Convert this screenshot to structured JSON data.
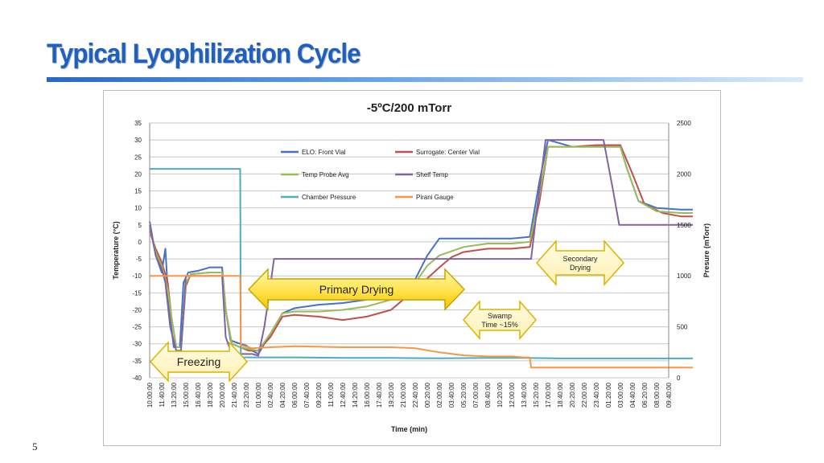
{
  "slide": {
    "title": "Typical Lyophilization Cycle",
    "page_number": "5"
  },
  "chart_data": {
    "type": "line",
    "title": "-5ºC/200 mTorr",
    "xlabel": "Time (min)",
    "ylabel": "Temperature (°C)",
    "y2label": "Presure (mTorr)",
    "ylim": [
      -40,
      35
    ],
    "y2lim": [
      0,
      2500
    ],
    "yticks": [
      35,
      30,
      25,
      20,
      15,
      10,
      5,
      0,
      -5,
      -10,
      -15,
      -20,
      -25,
      -30,
      -35,
      -40
    ],
    "y2ticks": [
      2500,
      2000,
      1500,
      1000,
      500,
      0
    ],
    "grid": true,
    "legend_position": "top-center",
    "x_ticks": [
      "10:00:00",
      "11:40:00",
      "13:20:00",
      "15:00:00",
      "16:40:00",
      "18:20:00",
      "20:00:00",
      "21:40:00",
      "23:20:00",
      "01:00:00",
      "02:40:00",
      "04:20:00",
      "06:00:00",
      "07:40:00",
      "09:20:00",
      "11:00:00",
      "12:40:00",
      "14:20:00",
      "16:00:00",
      "17:40:00",
      "19:20:00",
      "21:00:00",
      "22:40:00",
      "00:20:00",
      "02:00:00",
      "03:40:00",
      "05:20:00",
      "07:00:00",
      "08:40:00",
      "10:20:00",
      "12:00:00",
      "13:40:00",
      "15:20:00",
      "17:00:00",
      "18:40:00",
      "20:20:00",
      "22:00:00",
      "23:40:00",
      "01:20:00",
      "03:00:00",
      "04:40:00",
      "06:20:00",
      "08:00:00",
      "09:40:00"
    ],
    "series": [
      {
        "name": "ELO: Front Vial",
        "color": "#4472c4",
        "axis": "left",
        "points": [
          [
            0,
            6
          ],
          [
            0.5,
            -4
          ],
          [
            1,
            -9
          ],
          [
            1.3,
            -2
          ],
          [
            1.6,
            -20
          ],
          [
            2,
            -31
          ],
          [
            2.5,
            -31
          ],
          [
            2.8,
            -12
          ],
          [
            3.2,
            -9
          ],
          [
            4,
            -8.5
          ],
          [
            5,
            -7.5
          ],
          [
            6,
            -7.5
          ],
          [
            6.3,
            -20
          ],
          [
            6.7,
            -29
          ],
          [
            7.5,
            -30
          ],
          [
            8,
            -30.5
          ],
          [
            8.5,
            -32
          ],
          [
            9,
            -33
          ],
          [
            10,
            -27
          ],
          [
            11,
            -21
          ],
          [
            12,
            -19.5
          ],
          [
            14,
            -18.5
          ],
          [
            16,
            -18
          ],
          [
            18,
            -17
          ],
          [
            20,
            -15
          ],
          [
            22,
            -11
          ],
          [
            23,
            -4
          ],
          [
            24,
            1
          ],
          [
            26,
            1
          ],
          [
            28,
            1
          ],
          [
            30,
            1
          ],
          [
            31.5,
            1.5
          ],
          [
            32.3,
            18
          ],
          [
            33,
            30
          ],
          [
            35,
            28
          ],
          [
            37,
            28
          ],
          [
            39,
            28
          ],
          [
            39.5,
            22
          ],
          [
            40.5,
            12
          ],
          [
            42,
            10
          ],
          [
            44,
            9.5
          ],
          [
            45,
            9.5
          ]
        ]
      },
      {
        "name": "Surrogate: Center Vial",
        "color": "#c0504d",
        "axis": "left",
        "points": [
          [
            0,
            3
          ],
          [
            0.5,
            -2
          ],
          [
            1,
            -6
          ],
          [
            1.5,
            -12
          ],
          [
            1.8,
            -22
          ],
          [
            2.2,
            -31
          ],
          [
            2.6,
            -31
          ],
          [
            3,
            -13
          ],
          [
            3.4,
            -9.5
          ],
          [
            5,
            -9
          ],
          [
            6,
            -9
          ],
          [
            6.3,
            -20
          ],
          [
            6.8,
            -30
          ],
          [
            7.5,
            -31
          ],
          [
            8.2,
            -32
          ],
          [
            9,
            -32
          ],
          [
            10,
            -28
          ],
          [
            11,
            -22
          ],
          [
            12,
            -21.5
          ],
          [
            14,
            -22
          ],
          [
            16,
            -23
          ],
          [
            18,
            -22
          ],
          [
            20,
            -20
          ],
          [
            22,
            -14
          ],
          [
            24,
            -7.5
          ],
          [
            25,
            -4.5
          ],
          [
            26,
            -3
          ],
          [
            28,
            -2
          ],
          [
            30,
            -2
          ],
          [
            31.5,
            -1.5
          ],
          [
            32.3,
            12
          ],
          [
            33,
            28
          ],
          [
            35,
            28
          ],
          [
            37,
            28.5
          ],
          [
            39,
            28.5
          ],
          [
            40,
            20
          ],
          [
            41,
            11
          ],
          [
            42.5,
            8.5
          ],
          [
            44,
            7.5
          ],
          [
            45,
            7.5
          ]
        ]
      },
      {
        "name": "Temp Probe Avg",
        "color": "#9bbb59",
        "axis": "left",
        "points": [
          [
            0,
            4
          ],
          [
            0.5,
            -3
          ],
          [
            1,
            -7
          ],
          [
            1.5,
            -14
          ],
          [
            1.8,
            -22
          ],
          [
            2.2,
            -31
          ],
          [
            2.6,
            -31
          ],
          [
            3,
            -12
          ],
          [
            3.4,
            -9.5
          ],
          [
            5,
            -9
          ],
          [
            6,
            -9
          ],
          [
            6.3,
            -20
          ],
          [
            6.8,
            -30
          ],
          [
            7.5,
            -31
          ],
          [
            8.2,
            -31.5
          ],
          [
            9,
            -32
          ],
          [
            10,
            -27
          ],
          [
            11,
            -21
          ],
          [
            12,
            -20.5
          ],
          [
            14,
            -20.5
          ],
          [
            16,
            -20
          ],
          [
            18,
            -19
          ],
          [
            20,
            -17
          ],
          [
            22,
            -12
          ],
          [
            23,
            -7
          ],
          [
            24,
            -4
          ],
          [
            26,
            -1.5
          ],
          [
            28,
            -0.5
          ],
          [
            30,
            -0.5
          ],
          [
            31.5,
            0
          ],
          [
            32.3,
            14
          ],
          [
            33,
            28
          ],
          [
            35,
            28
          ],
          [
            37,
            28
          ],
          [
            39,
            28
          ],
          [
            39.5,
            22
          ],
          [
            40.5,
            12
          ],
          [
            42,
            9
          ],
          [
            44,
            8.5
          ],
          [
            45,
            8.5
          ]
        ]
      },
      {
        "name": "Shelf Temp",
        "color": "#8064a2",
        "axis": "left",
        "points": [
          [
            0,
            5
          ],
          [
            0.5,
            -4
          ],
          [
            1,
            -8
          ],
          [
            1.3,
            -12
          ],
          [
            1.7,
            -25
          ],
          [
            2.2,
            -32
          ],
          [
            2.6,
            -32
          ],
          [
            3,
            -10
          ],
          [
            3.5,
            -10
          ],
          [
            5,
            -10
          ],
          [
            6,
            -10
          ],
          [
            6.3,
            -28
          ],
          [
            6.8,
            -33
          ],
          [
            7.5,
            -33
          ],
          [
            8.5,
            -33
          ],
          [
            9,
            -33.5
          ],
          [
            9.5,
            -25
          ],
          [
            10,
            -13
          ],
          [
            10.3,
            -5
          ],
          [
            12,
            -5
          ],
          [
            14,
            -5
          ],
          [
            16,
            -5
          ],
          [
            18,
            -5
          ],
          [
            20,
            -5
          ],
          [
            22,
            -5
          ],
          [
            24,
            -5
          ],
          [
            26,
            -5
          ],
          [
            28,
            -5
          ],
          [
            30,
            -5
          ],
          [
            31.6,
            -5
          ],
          [
            32.1,
            10
          ],
          [
            32.8,
            30
          ],
          [
            34,
            30
          ],
          [
            36,
            30
          ],
          [
            37.6,
            30
          ],
          [
            38.4,
            15
          ],
          [
            38.9,
            5
          ],
          [
            40,
            5
          ],
          [
            42,
            5
          ],
          [
            44,
            5
          ],
          [
            45,
            5
          ]
        ]
      },
      {
        "name": "Chamber Pressure",
        "color": "#4bacc6",
        "axis": "right",
        "points": [
          [
            0,
            2050
          ],
          [
            7.5,
            2050
          ],
          [
            7.5,
            2050
          ],
          [
            7.55,
            200
          ],
          [
            10,
            200
          ],
          [
            12,
            200
          ],
          [
            16,
            195
          ],
          [
            20,
            195
          ],
          [
            24,
            192
          ],
          [
            28,
            195
          ],
          [
            31,
            195
          ],
          [
            34,
            190
          ],
          [
            40,
            190
          ],
          [
            45,
            190
          ]
        ]
      },
      {
        "name": "Pirani Gauge",
        "color": "#f79646",
        "axis": "right",
        "points": [
          [
            0,
            1000
          ],
          [
            7.5,
            1000
          ],
          [
            7.55,
            320
          ],
          [
            8.5,
            290
          ],
          [
            10,
            300
          ],
          [
            12,
            310
          ],
          [
            16,
            300
          ],
          [
            20,
            300
          ],
          [
            22,
            290
          ],
          [
            23,
            270
          ],
          [
            24,
            250
          ],
          [
            26,
            220
          ],
          [
            28,
            210
          ],
          [
            30,
            210
          ],
          [
            31,
            200
          ],
          [
            31.5,
            200
          ],
          [
            31.6,
            100
          ],
          [
            34,
            100
          ],
          [
            38,
            100
          ],
          [
            42,
            100
          ],
          [
            45,
            100
          ]
        ]
      }
    ],
    "annotations": [
      {
        "text": "Freezing"
      },
      {
        "text": "Primary Drying"
      },
      {
        "text": "Swamp Time ~15%"
      },
      {
        "text": "Secondary Drying"
      }
    ]
  }
}
